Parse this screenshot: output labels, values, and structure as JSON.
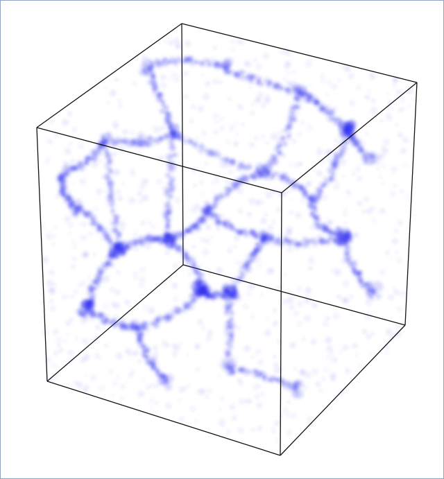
{
  "colors": {
    "matter": "#2f2ff0",
    "edges": "#111111",
    "frame": "#8fa3c2"
  }
}
